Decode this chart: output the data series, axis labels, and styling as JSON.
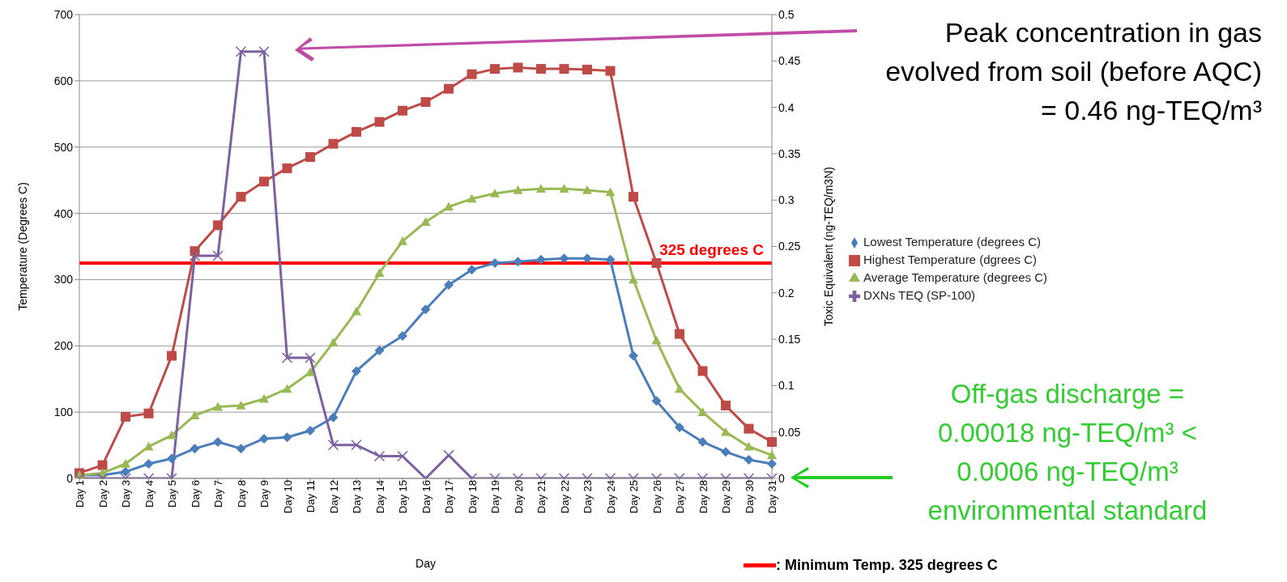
{
  "chart_data": {
    "type": "line",
    "xlabel": "Day",
    "ylabel": "Temperature (Degrees C)",
    "y2label": "Toxic Equivalent (ng-TEQ/m3N)",
    "categories": [
      "Day 1",
      "Day 2",
      "Day 3",
      "Day 4",
      "Day 5",
      "Day 6",
      "Day 7",
      "Day 8",
      "Day 9",
      "Day 10",
      "Day 11",
      "Day 12",
      "Day 13",
      "Day 14",
      "Day 15",
      "Day 16",
      "Day 17",
      "Day 18",
      "Day 19",
      "Day 20",
      "Day 21",
      "Day 22",
      "Day 23",
      "Day 24",
      "Day 25",
      "Day 26",
      "Day 27",
      "Day 28",
      "Day 29",
      "Day 30",
      "Day 31"
    ],
    "series": [
      {
        "name": "Lowest Temperature  (degrees C)",
        "color": "#4a7ebb",
        "marker": "diamond",
        "values": [
          5,
          5,
          10,
          22,
          30,
          45,
          55,
          45,
          60,
          62,
          72,
          92,
          162,
          193,
          215,
          255,
          292,
          315,
          325,
          327,
          330,
          332,
          332,
          330,
          185,
          117,
          77,
          55,
          40,
          28,
          22
        ]
      },
      {
        "name": "Highest Temperature  (dgrees C)",
        "color": "#be4b48",
        "marker": "square",
        "values": [
          8,
          20,
          93,
          98,
          185,
          343,
          382,
          425,
          448,
          468,
          485,
          505,
          523,
          538,
          555,
          568,
          588,
          610,
          618,
          620,
          618,
          618,
          617,
          615,
          425,
          325,
          218,
          162,
          110,
          75,
          55
        ]
      },
      {
        "name": "Average Temperature  (degrees C)",
        "color": "#98b954",
        "marker": "triangle",
        "values": [
          5,
          8,
          22,
          48,
          65,
          95,
          108,
          110,
          120,
          135,
          160,
          205,
          252,
          310,
          358,
          387,
          410,
          422,
          430,
          435,
          437,
          437,
          435,
          432,
          300,
          208,
          135,
          100,
          70,
          48,
          35
        ]
      },
      {
        "name": "DXNs TEQ (SP-100)",
        "color": "#7d60a0",
        "marker": "cross",
        "axis": "y2",
        "values": [
          0,
          0,
          0,
          0,
          0,
          0.24,
          0.24,
          0.46,
          0.46,
          0.13,
          0.13,
          0.036,
          0.036,
          0.024,
          0.024,
          0,
          0.025,
          0,
          0,
          0,
          0,
          0,
          0,
          0,
          0,
          0,
          0,
          0,
          0,
          0,
          0
        ]
      }
    ],
    "ylim": [
      0,
      700
    ],
    "yticks": [
      0,
      100,
      200,
      300,
      400,
      500,
      600,
      700
    ],
    "y2lim": [
      0,
      0.5
    ],
    "y2ticks": [
      0,
      0.05,
      0.1,
      0.15,
      0.2,
      0.25,
      0.3,
      0.35,
      0.4,
      0.45,
      0.5
    ],
    "grid": "y",
    "legend": "right",
    "ref_lines": [
      {
        "axis": "y",
        "value": 325,
        "label": "325 degrees C",
        "color": "#ff0000"
      }
    ],
    "annotations": [
      "Peak concentration in gas evolved from soil (before AQC) = 0.46 ng-TEQ/m³",
      "Off-gas discharge = 0.00018 ng-TEQ/m³ < 0.0006 ng-TEQ/m³ environmental standard",
      ": Minimum Temp. 325 degrees C"
    ]
  }
}
